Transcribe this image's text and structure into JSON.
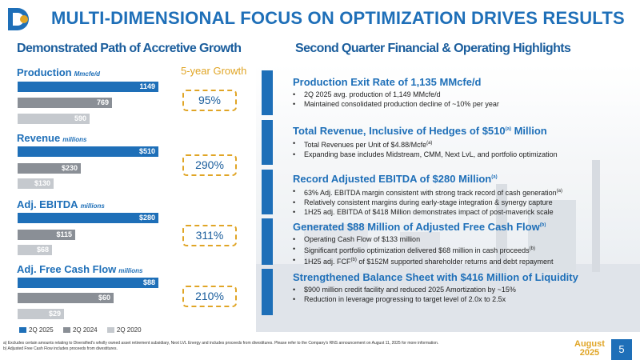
{
  "header": {
    "title": "MULTI-DIMENSIONAL FOCUS ON OPTIMIZATION DRIVES RESULTS"
  },
  "left": {
    "heading": "Demonstrated Path of Accretive Growth",
    "growth_heading": "5-year Growth",
    "metrics": [
      {
        "label": "Production",
        "unit": "Mmcfe/d",
        "values": [
          1149,
          769,
          590
        ],
        "value_labels": [
          "1149",
          "769",
          "590"
        ],
        "growth": "95%"
      },
      {
        "label": "Revenue",
        "unit": "millions",
        "values": [
          510,
          230,
          130
        ],
        "value_labels": [
          "$510",
          "$230",
          "$130"
        ],
        "growth": "290%"
      },
      {
        "label": "Adj. EBITDA",
        "unit": "millions",
        "values": [
          280,
          115,
          68
        ],
        "value_labels": [
          "$280",
          "$115",
          "$68"
        ],
        "growth": "311%"
      },
      {
        "label": "Adj. Free Cash Flow",
        "unit": "millions",
        "values": [
          88,
          60,
          29
        ],
        "value_labels": [
          "$88",
          "$60",
          "$29"
        ],
        "growth": "210%"
      }
    ],
    "legend": [
      {
        "label": "2Q 2025",
        "color": "#1e6fb8"
      },
      {
        "label": "2Q 2024",
        "color": "#8a8f96"
      },
      {
        "label": "2Q 2020",
        "color": "#c5c9ce"
      }
    ]
  },
  "right": {
    "heading": "Second Quarter Financial & Operating Highlights",
    "sections": [
      {
        "title": "Production Exit Rate of 1,135 MMcfe/d",
        "bullets": [
          {
            "text": "2Q 2025 avg. production of 1,149 MMcfe/d",
            "sup": ""
          },
          {
            "text": "Maintained consolidated production decline of ~10% per year",
            "sup": ""
          }
        ]
      },
      {
        "title": "Total Revenue, Inclusive of Hedges of $510",
        "title_sup": "(a)",
        "title_after": " Million",
        "bullets": [
          {
            "text": "Total Revenues per Unit of $4.88/Mcfe",
            "sup": "(a)"
          },
          {
            "text": "Expanding base includes Midstream, CMM, Next LvL, and portfolio optimization",
            "sup": ""
          }
        ]
      },
      {
        "title": "Record Adjusted EBITDA of $280 Million",
        "title_sup": "(a)",
        "bullets": [
          {
            "text": "63% Adj. EBITDA margin consistent with strong track record of cash generation",
            "sup": "(a)"
          },
          {
            "text": "Relatively consistent margins during early-stage integration & synergy capture",
            "sup": ""
          },
          {
            "text": "1H25 adj. EBITDA of $418 Million demonstrates impact of post-maverick scale",
            "sup": ""
          }
        ]
      },
      {
        "title": "Generated $88 Million of Adjusted Free Cash Flow",
        "title_sup": "(b)",
        "bullets": [
          {
            "text": "Operating Cash Flow of $133 million",
            "sup": ""
          },
          {
            "text": "Significant portfolio optimization delivered $68 million in cash proceeds",
            "sup": "(b)"
          },
          {
            "pre": "1H25 adj. FCF",
            "sup_mid": "(b)",
            "text": " of $152M supported shareholder returns and debt repayment"
          }
        ]
      },
      {
        "title": "Strengthened Balance Sheet with $416 Million of Liquidity",
        "bullets": [
          {
            "text": "$900 million credit facility and reduced 2025 Amortization by ~15%",
            "sup": ""
          },
          {
            "text": "Reduction in leverage progressing to target level of 2.0x to 2.5x",
            "sup": ""
          }
        ]
      }
    ]
  },
  "footer": {
    "footnote_a": "a)   Excludes certain amounts relating to Diversified's wholly owned asset retirement subsidiary, Next LVL Energy and includes proceeds from divestitures. Please refer to the Company's RNS announcement on August 11, 2025 for more information.",
    "footnote_b": "b)   Adjusted Free Cash Flow includes proceeds from divestitures.",
    "date_month": "August",
    "date_year": "2025",
    "page": "5"
  }
}
